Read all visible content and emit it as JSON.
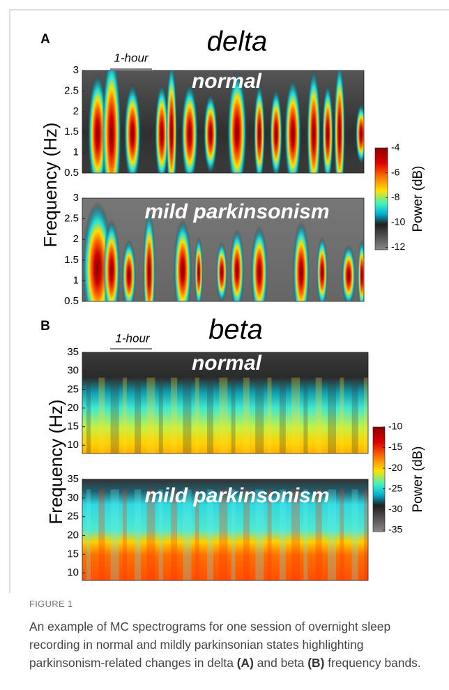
{
  "figure": {
    "panels": [
      {
        "label": "A",
        "title": "delta",
        "scale_bar": "1-hour",
        "y_label": "Frequency (Hz)",
        "plots": [
          {
            "state": "normal",
            "ylim": [
              0.5,
              3
            ],
            "yticks": [
              0.5,
              1,
              1.5,
              2,
              2.5,
              3
            ]
          },
          {
            "state": "mild parkinsonism",
            "ylim": [
              0.5,
              3
            ],
            "yticks": [
              0.5,
              1,
              1.5,
              2,
              2.5,
              3
            ]
          }
        ],
        "colorbar": {
          "label": "Power (dB)",
          "lim": [
            -4,
            -12.2
          ],
          "ticks": [
            -4,
            -6,
            -8,
            -10,
            -12
          ]
        }
      },
      {
        "label": "B",
        "title": "beta",
        "scale_bar": "1-hour",
        "y_label": "Frequency (Hz)",
        "plots": [
          {
            "state": "normal",
            "ylim": [
              7.8,
              35
            ],
            "yticks": [
              10,
              15,
              20,
              25,
              30,
              35
            ]
          },
          {
            "state": "mild parkinsonism",
            "ylim": [
              8,
              35
            ],
            "yticks": [
              10,
              15,
              20,
              25,
              30,
              35
            ]
          }
        ],
        "colorbar": {
          "label": "Power (dB)",
          "lim": [
            -10,
            -35.4
          ],
          "ticks": [
            -10,
            -15,
            -20,
            -25,
            -30,
            -35
          ]
        }
      }
    ],
    "caption": {
      "label": "FIGURE 1",
      "text": [
        "An example of MC spectrograms for one session of overnight sleep recording in normal and mildly parkinsonian states highlighting parkinsonism-related changes in delta ",
        "(A)",
        " and beta ",
        "(B)",
        " frequency bands."
      ]
    }
  }
}
